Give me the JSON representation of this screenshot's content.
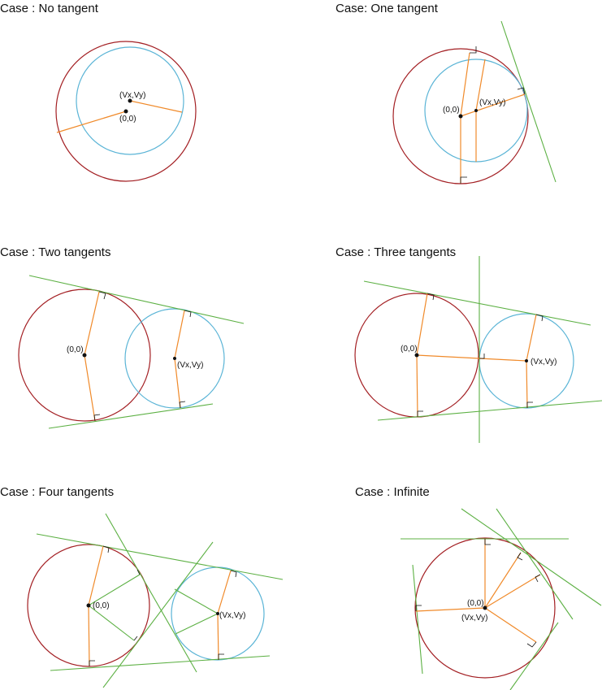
{
  "panels": [
    {
      "title": "Case :  No tangent",
      "labels": [
        "(Vx,Vy)",
        "(0,0)"
      ]
    },
    {
      "title": "Case:  One tangent",
      "labels": [
        "(0,0)",
        "(Vx,Vy)"
      ]
    },
    {
      "title": "Case : Two tangents",
      "labels": [
        "(0,0)",
        "(Vx,Vy)"
      ]
    },
    {
      "title": "Case : Three tangents",
      "labels": [
        "(0,0)",
        "(Vx,Vy)"
      ]
    },
    {
      "title": "Case : Four tangents",
      "labels": [
        "(0,0)",
        "(Vx,Vy)"
      ]
    },
    {
      "title": "Case : Infinite",
      "labels": [
        "(0,0)",
        "(Vx,Vy)"
      ]
    }
  ]
}
